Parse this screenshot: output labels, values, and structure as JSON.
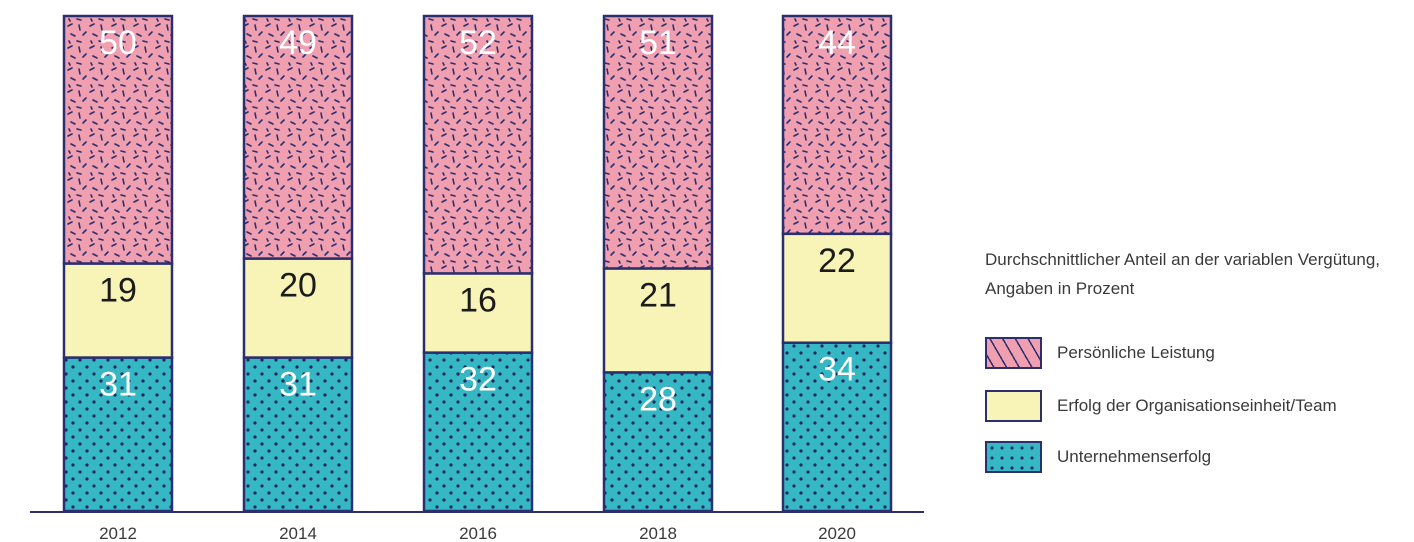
{
  "chart_data": {
    "type": "bar",
    "stacked": true,
    "categories": [
      "2012",
      "2014",
      "2016",
      "2018",
      "2020"
    ],
    "series": [
      {
        "name": "Unternehmenserfolg",
        "values": [
          31,
          31,
          32,
          28,
          34
        ],
        "color": "#35b8c4",
        "pattern": "dots"
      },
      {
        "name": "Erfolg der Organisationseinheit/Team",
        "values": [
          19,
          20,
          16,
          21,
          22
        ],
        "color": "#f8f4b8",
        "pattern": "none"
      },
      {
        "name": "Persönliche Leistung",
        "values": [
          50,
          49,
          52,
          51,
          44
        ],
        "color": "#ef9fb0",
        "pattern": "dashes"
      }
    ],
    "ylim": [
      0,
      100
    ],
    "legend_title": "Durchschnittlicher Anteil an der variablen Vergütung, Angaben in Prozent",
    "legend_position": "right",
    "grid": false,
    "outline_color": "#2b2f6e"
  }
}
